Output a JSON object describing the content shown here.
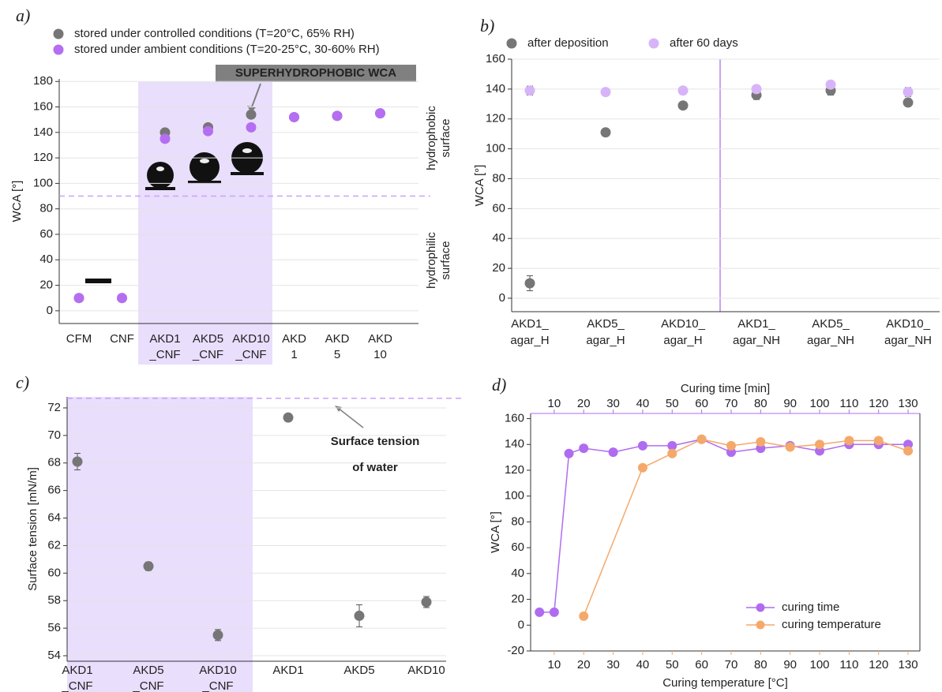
{
  "chart_data": [
    {
      "type": "scatter",
      "label": "a)",
      "ylabel": "WCA [°]",
      "categories": [
        [
          "CFM"
        ],
        [
          "CNF"
        ],
        [
          "AKD1",
          "_CNF"
        ],
        [
          "AKD5",
          "_CNF"
        ],
        [
          "AKD10",
          "_CNF"
        ],
        [
          "AKD",
          "1"
        ],
        [
          "AKD",
          "5"
        ],
        [
          "AKD",
          "10"
        ]
      ],
      "series": [
        {
          "name": "stored under controlled conditions (T=20°C, 65% RH)",
          "color": "#767676",
          "values": [
            10,
            10,
            140,
            144,
            154,
            152,
            153,
            155
          ]
        },
        {
          "name": "stored under ambient conditions (T=20-25°C, 30-60% RH)",
          "color": "#b56ef2",
          "values": [
            10,
            10,
            135,
            141,
            144,
            152,
            153,
            155
          ]
        }
      ],
      "ylim": [
        -10,
        182
      ],
      "yticks": [
        0,
        20,
        40,
        60,
        80,
        100,
        120,
        140,
        160,
        180
      ],
      "grid": true,
      "threshold": 90,
      "annotations": [
        "SUPERHYDROPHOBIC WCA",
        "hydrophobic",
        "surface",
        "hydrophilic",
        "surface"
      ]
    },
    {
      "type": "scatter",
      "label": "b)",
      "ylabel": "WCA [°]",
      "categories": [
        [
          "AKD1_",
          "agar_H"
        ],
        [
          "AKD5_",
          "agar_H"
        ],
        [
          "AKD10_",
          "agar_H"
        ],
        [
          "AKD1_",
          "agar_NH"
        ],
        [
          "AKD5_",
          "agar_NH"
        ],
        [
          "AKD10_",
          "agar_NH"
        ]
      ],
      "series": [
        {
          "name": "after deposition",
          "color": "#767676",
          "values": [
            10,
            111,
            129,
            136,
            139,
            131
          ],
          "errors": [
            5,
            2,
            2,
            3,
            3,
            2
          ]
        },
        {
          "name": "after 60 days",
          "color": "#d7b4f8",
          "values": [
            139,
            138,
            139,
            140,
            143,
            138
          ],
          "errors": [
            3,
            2,
            1,
            2,
            2,
            3
          ]
        }
      ],
      "ylim": [
        -9,
        160
      ],
      "yticks": [
        0,
        20,
        40,
        60,
        80,
        100,
        120,
        140,
        160
      ],
      "grid": true
    },
    {
      "type": "scatter",
      "label": "c)",
      "ylabel": "Surface tension [mN/m]",
      "categories": [
        [
          "AKD1",
          "_CNF"
        ],
        [
          "AKD5",
          "_CNF"
        ],
        [
          "AKD10",
          "_CNF"
        ],
        [
          "AKD1"
        ],
        [
          "AKD5"
        ],
        [
          "AKD10"
        ]
      ],
      "values": [
        68.1,
        60.5,
        55.5,
        71.3,
        56.9,
        57.9
      ],
      "errors": [
        0.6,
        0.3,
        0.4,
        0.1,
        0.8,
        0.4
      ],
      "color": "#767676",
      "ylim": [
        53.6,
        72.8
      ],
      "yticks": [
        54,
        56,
        58,
        60,
        62,
        64,
        66,
        68,
        70,
        72
      ],
      "grid": true,
      "reference": 72.7,
      "annotations": [
        "Surface tension",
        "of water"
      ]
    },
    {
      "type": "line",
      "label": "d)",
      "ylabel": "WCA [°]",
      "xlabel": "Curing temperature [°C]",
      "x2label": "Curing time [min]",
      "xlim": [
        2,
        134
      ],
      "xticks": [
        10,
        20,
        30,
        40,
        50,
        60,
        70,
        80,
        90,
        100,
        110,
        120,
        130
      ],
      "x2lim": [
        2,
        134
      ],
      "x2ticks": [
        10,
        20,
        30,
        40,
        50,
        60,
        70,
        80,
        90,
        100,
        110,
        120,
        130
      ],
      "ylim": [
        -20,
        164
      ],
      "yticks": [
        -20,
        0,
        20,
        40,
        60,
        80,
        100,
        120,
        140,
        160
      ],
      "series": [
        {
          "name": "curing time",
          "color": "#b06cf0",
          "axis": "x2",
          "x": [
            5,
            10,
            15,
            20,
            30,
            40,
            50,
            60,
            70,
            80,
            90,
            100,
            110,
            120,
            130
          ],
          "values": [
            10,
            10,
            133,
            137,
            134,
            139,
            139,
            144,
            134,
            137,
            139,
            135,
            140,
            140,
            140
          ]
        },
        {
          "name": "curing temperature",
          "color": "#f4a96b",
          "x": [
            20,
            40,
            50,
            60,
            70,
            80,
            90,
            100,
            110,
            120,
            130
          ],
          "values": [
            7,
            122,
            133,
            144,
            139,
            142,
            138,
            140,
            143,
            143,
            135
          ]
        }
      ]
    }
  ]
}
